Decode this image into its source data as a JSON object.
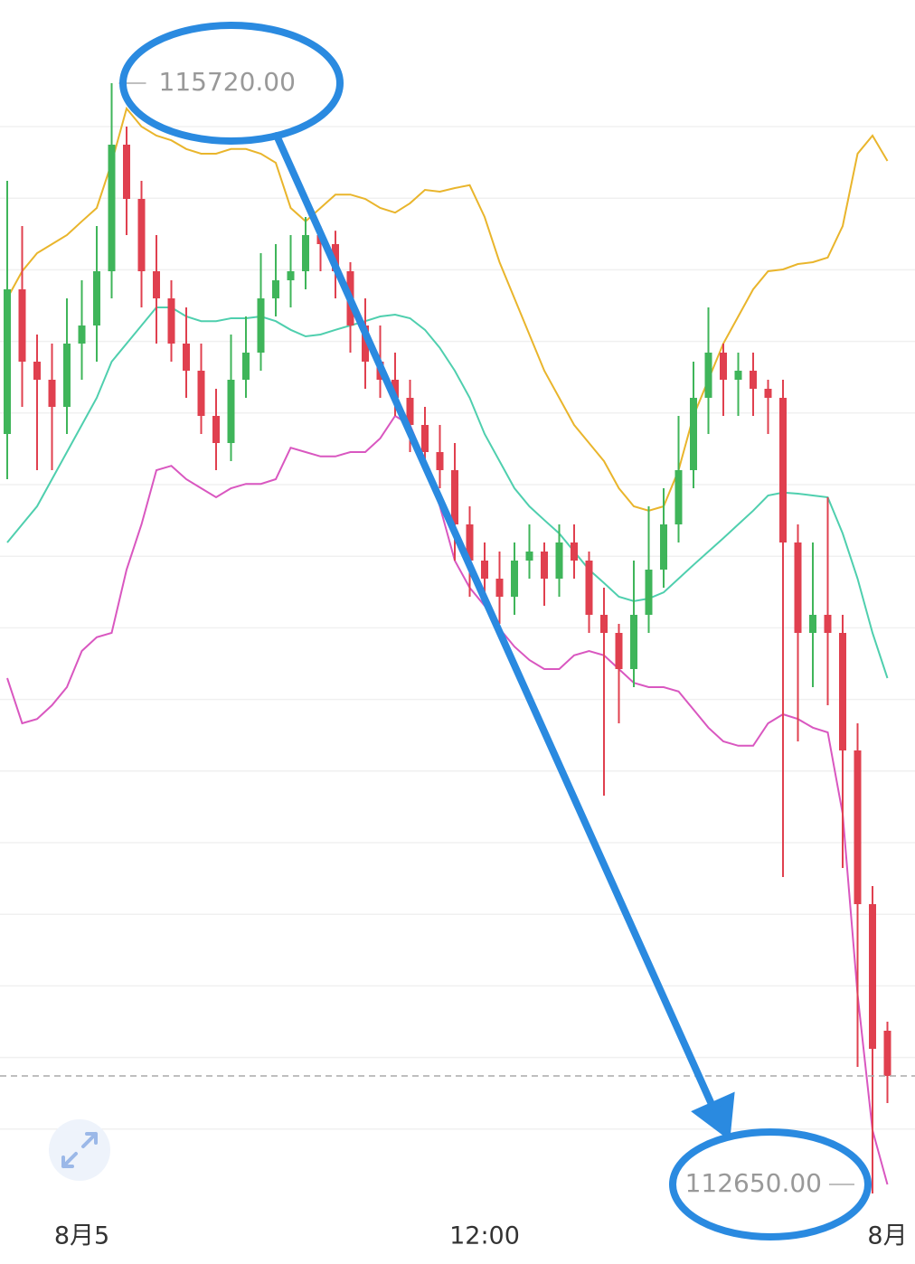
{
  "chart_data": {
    "type": "candlestick",
    "categories": [
      null,
      null,
      null,
      null,
      null,
      "8月5",
      null,
      null,
      null,
      null,
      null,
      null,
      null,
      null,
      null,
      null,
      null,
      null,
      null,
      null,
      null,
      null,
      null,
      null,
      null,
      null,
      null,
      null,
      null,
      null,
      null,
      null,
      "12:00",
      null,
      null,
      null,
      null,
      null,
      null,
      null,
      null,
      null,
      null,
      null,
      null,
      null,
      null,
      null,
      null,
      null,
      null,
      null,
      null,
      null,
      null,
      null,
      null,
      null,
      null,
      "8月"
    ],
    "open": [
      114750,
      115150,
      114950,
      114900,
      114825,
      115000,
      115050,
      115200,
      115550,
      115400,
      115200,
      115125,
      115000,
      114925,
      114800,
      114725,
      114900,
      114975,
      115125,
      115175,
      115200,
      115300,
      115275,
      115200,
      115050,
      114950,
      114900,
      114850,
      114775,
      114700,
      114650,
      114500,
      114400,
      114350,
      114300,
      114400,
      114425,
      114350,
      114450,
      114400,
      114250,
      114200,
      114100,
      114250,
      114375,
      114500,
      114650,
      114850,
      114975,
      114900,
      114925,
      114875,
      114850,
      114450,
      114200,
      114250,
      114200,
      113875,
      113450,
      113100
    ],
    "high": [
      115450,
      115325,
      115025,
      115000,
      115125,
      115175,
      115325,
      115720,
      115600,
      115450,
      115300,
      115175,
      115100,
      115000,
      114875,
      115025,
      115075,
      115250,
      115275,
      115300,
      115350,
      115325,
      115312,
      115225,
      115125,
      115050,
      114975,
      114900,
      114825,
      114775,
      114725,
      114550,
      114450,
      114425,
      114450,
      114500,
      114450,
      114500,
      114500,
      114425,
      114325,
      114225,
      114400,
      114550,
      114600,
      114800,
      114950,
      115100,
      115000,
      114975,
      114975,
      114900,
      114900,
      114500,
      114450,
      114575,
      114250,
      113950,
      113500,
      113125
    ],
    "low": [
      114625,
      114825,
      114650,
      114650,
      114750,
      114900,
      114950,
      115125,
      115300,
      115100,
      115000,
      114950,
      114850,
      114750,
      114650,
      114675,
      114850,
      114925,
      115075,
      115100,
      115150,
      115200,
      115125,
      114975,
      114875,
      114850,
      114800,
      114700,
      114650,
      114600,
      114400,
      114300,
      114275,
      114225,
      114250,
      114350,
      114275,
      114300,
      114350,
      114200,
      113750,
      113950,
      114050,
      114200,
      114325,
      114450,
      114600,
      114750,
      114800,
      114800,
      114800,
      114750,
      113525,
      113900,
      114050,
      114000,
      113550,
      113000,
      112650,
      112900
    ],
    "close": [
      115150,
      114950,
      114900,
      114825,
      115000,
      115050,
      115200,
      115550,
      115400,
      115200,
      115125,
      115000,
      114925,
      114800,
      114725,
      114900,
      114975,
      115125,
      115175,
      115200,
      115300,
      115275,
      115200,
      115050,
      114950,
      114900,
      114850,
      114775,
      114700,
      114650,
      114500,
      114400,
      114350,
      114300,
      114400,
      114425,
      114350,
      114450,
      114400,
      114250,
      114200,
      114100,
      114250,
      114375,
      114500,
      114650,
      114850,
      114975,
      114900,
      114925,
      114875,
      114850,
      114450,
      114200,
      114250,
      114200,
      113875,
      113450,
      113050,
      112975
    ],
    "up_color": "#3fb55a",
    "down_color": "#e0404f",
    "bands": [
      {
        "color": "#e9b52c",
        "values": [
          115125,
          115200,
          115250,
          115275,
          115300,
          115338,
          115375,
          115500,
          115650,
          115600,
          115575,
          115562,
          115538,
          115525,
          115525,
          115538,
          115538,
          115525,
          115500,
          115375,
          115338,
          115375,
          115412,
          115412,
          115400,
          115375,
          115362,
          115388,
          115425,
          115420,
          115430,
          115438,
          115350,
          115225,
          115125,
          115025,
          114925,
          114850,
          114775,
          114725,
          114675,
          114600,
          114550,
          114538,
          114550,
          114650,
          114800,
          114900,
          115000,
          115075,
          115150,
          115200,
          115205,
          115220,
          115225,
          115238,
          115325,
          115525,
          115575,
          115505
        ]
      },
      {
        "color": "#4fcfae",
        "values": [
          114450,
          114500,
          114550,
          114625,
          114700,
          114775,
          114850,
          114950,
          115000,
          115050,
          115100,
          115100,
          115075,
          115062,
          115062,
          115070,
          115070,
          115075,
          115062,
          115038,
          115020,
          115025,
          115038,
          115050,
          115062,
          115075,
          115080,
          115070,
          115038,
          114988,
          114925,
          114850,
          114750,
          114675,
          114600,
          114550,
          114512,
          114475,
          114425,
          114375,
          114338,
          114300,
          114288,
          114295,
          114312,
          114350,
          114388,
          114425,
          114462,
          114500,
          114538,
          114580,
          114588,
          114585,
          114580,
          114575,
          114475,
          114350,
          114200,
          114075
        ]
      },
      {
        "color": "#d957c0",
        "values": [
          114075,
          113950,
          113962,
          114000,
          114050,
          114150,
          114188,
          114200,
          114375,
          114500,
          114650,
          114662,
          114625,
          114600,
          114575,
          114600,
          114612,
          114612,
          114625,
          114712,
          114700,
          114688,
          114688,
          114700,
          114700,
          114738,
          114800,
          114775,
          114675,
          114550,
          114400,
          114325,
          114275,
          114212,
          114162,
          114125,
          114100,
          114100,
          114138,
          114150,
          114138,
          114100,
          114062,
          114050,
          114050,
          114038,
          113988,
          113938,
          113900,
          113888,
          113888,
          113950,
          113975,
          113962,
          113938,
          113925,
          113700,
          113200,
          112825,
          112675
        ]
      }
    ],
    "ylim": [
      112600,
      115950
    ],
    "annotations": [
      "115720.00",
      "112650.00"
    ]
  }
}
